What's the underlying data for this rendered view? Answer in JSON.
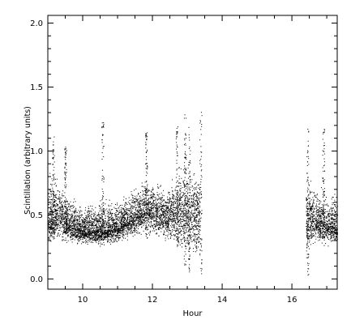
{
  "chart_data": {
    "type": "scatter",
    "xlabel": "Hour",
    "ylabel": "Scintillation  (arbitrary units)",
    "xlim": [
      9.0,
      17.3
    ],
    "ylim": [
      -0.08,
      2.06
    ],
    "xticks": [
      10,
      12,
      14,
      16
    ],
    "yticks": [
      0.0,
      0.5,
      1.0,
      1.5,
      2.0
    ],
    "x_tick_labels": [
      "10",
      "12",
      "14",
      "16"
    ],
    "y_tick_labels": [
      "0.0",
      "0.5",
      "1.0",
      "1.5",
      "2.0"
    ],
    "grid": false,
    "colors": {
      "points": "#000000",
      "axes": "#000000",
      "background": "#ffffff"
    },
    "series": [
      {
        "segments": [
          {
            "x_start": 9.0,
            "x_end": 13.35,
            "observed": true
          },
          {
            "x_start": 13.35,
            "x_end": 16.4,
            "observed": false
          },
          {
            "x_start": 16.4,
            "x_end": 17.3,
            "observed": true
          }
        ],
        "median_profile": {
          "x": [
            9.0,
            9.3,
            9.6,
            10.0,
            10.5,
            11.0,
            11.5,
            11.8,
            12.0,
            12.3,
            12.6,
            12.9,
            13.1,
            13.35,
            16.4,
            16.7,
            17.0,
            17.3
          ],
          "y": [
            0.45,
            0.5,
            0.42,
            0.38,
            0.38,
            0.4,
            0.48,
            0.55,
            0.52,
            0.5,
            0.5,
            0.55,
            0.5,
            0.5,
            0.5,
            0.45,
            0.42,
            0.4
          ]
        },
        "typical_upper": {
          "x": [
            9.0,
            9.3,
            9.6,
            10.0,
            10.5,
            11.0,
            11.5,
            11.8,
            12.0,
            12.3,
            12.6,
            12.9,
            13.1,
            13.35,
            16.4,
            16.7,
            17.0,
            17.3
          ],
          "y": [
            0.9,
            0.8,
            0.7,
            0.6,
            0.65,
            0.65,
            0.75,
            0.85,
            0.8,
            0.75,
            0.85,
            1.05,
            0.95,
            0.85,
            0.8,
            0.75,
            0.7,
            0.7
          ]
        },
        "typical_lower": {
          "x": [
            9.0,
            9.3,
            9.6,
            10.0,
            10.5,
            11.0,
            11.5,
            11.8,
            12.0,
            12.3,
            12.6,
            12.9,
            13.1,
            13.35,
            16.4,
            16.7,
            17.0,
            17.3
          ],
          "y": [
            0.25,
            0.25,
            0.25,
            0.25,
            0.25,
            0.27,
            0.3,
            0.35,
            0.3,
            0.28,
            0.25,
            0.1,
            0.15,
            0.05,
            0.1,
            0.25,
            0.25,
            0.25
          ]
        },
        "spikes": [
          {
            "x": 9.15,
            "y_min": 0.3,
            "y_max": 1.12
          },
          {
            "x": 9.5,
            "y_min": 0.3,
            "y_max": 1.06
          },
          {
            "x": 10.57,
            "y_min": 0.3,
            "y_max": 1.25
          },
          {
            "x": 11.82,
            "y_min": 0.3,
            "y_max": 1.15
          },
          {
            "x": 12.7,
            "y_min": 0.25,
            "y_max": 1.2
          },
          {
            "x": 12.93,
            "y_min": 0.02,
            "y_max": 1.3
          },
          {
            "x": 13.05,
            "y_min": 0.05,
            "y_max": 1.2
          },
          {
            "x": 13.38,
            "y_min": 0.03,
            "y_max": 1.32
          },
          {
            "x": 16.45,
            "y_min": 0.02,
            "y_max": 1.2
          },
          {
            "x": 16.9,
            "y_min": 0.3,
            "y_max": 1.18
          }
        ]
      }
    ]
  }
}
